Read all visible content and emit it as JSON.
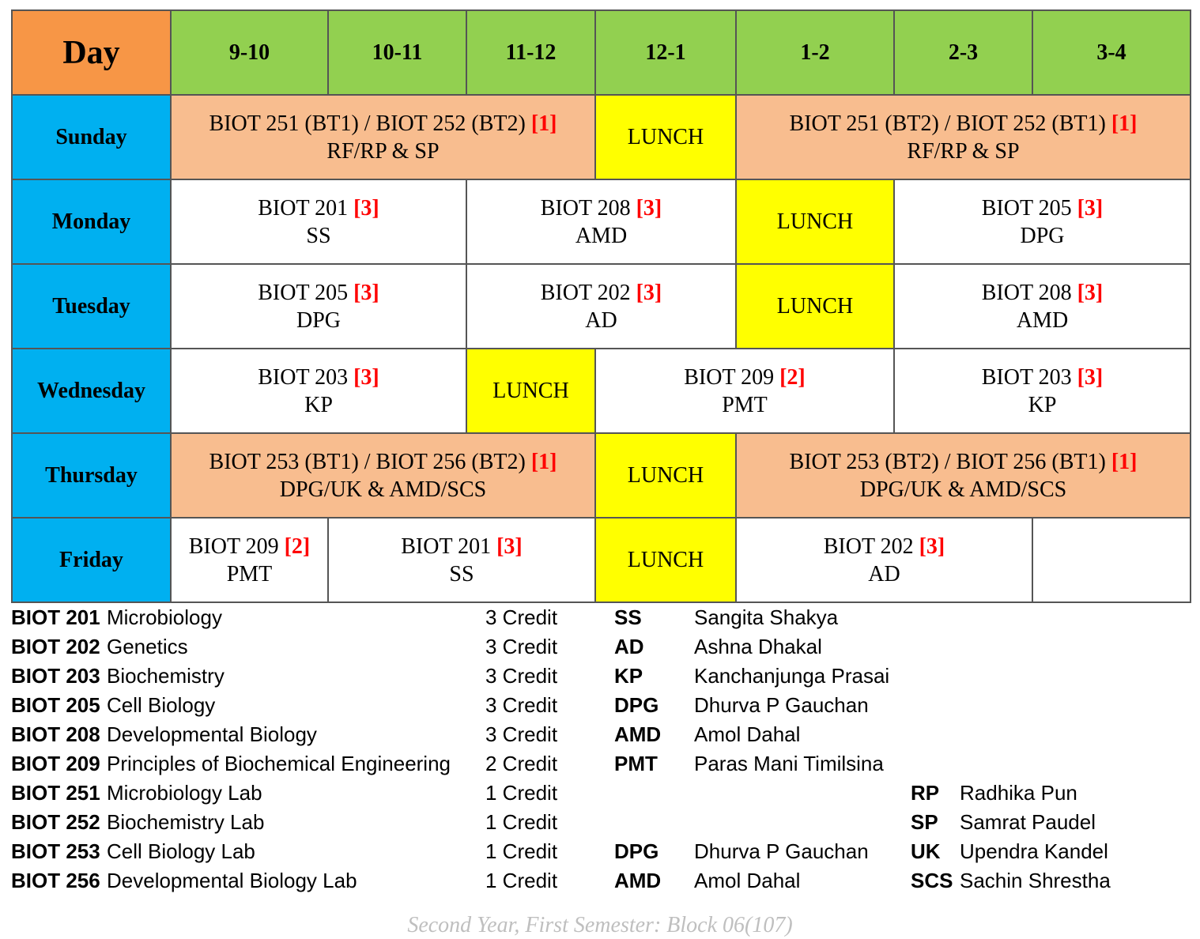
{
  "header": {
    "day_label": "Day",
    "slots": [
      "9-10",
      "10-11",
      "11-12",
      "12-1",
      "1-2",
      "2-3",
      "3-4"
    ]
  },
  "days": {
    "sunday": {
      "name": "Sunday",
      "c1": {
        "course": "BIOT 251 (BT1) / BIOT 252 (BT2)",
        "credit": "[1]",
        "teacher": "RF/RP & SP"
      },
      "lunch": "LUNCH",
      "c2": {
        "course": "BIOT 251 (BT2) / BIOT 252 (BT1)",
        "credit": "[1]",
        "teacher": "RF/RP & SP"
      }
    },
    "monday": {
      "name": "Monday",
      "c1": {
        "course": "BIOT 201",
        "credit": "[3]",
        "teacher": "SS"
      },
      "c2": {
        "course": "BIOT 208",
        "credit": "[3]",
        "teacher": "AMD"
      },
      "lunch": "LUNCH",
      "c3": {
        "course": "BIOT 205",
        "credit": "[3]",
        "teacher": "DPG"
      }
    },
    "tuesday": {
      "name": "Tuesday",
      "c1": {
        "course": "BIOT 205",
        "credit": "[3]",
        "teacher": "DPG"
      },
      "c2": {
        "course": "BIOT 202",
        "credit": "[3]",
        "teacher": "AD"
      },
      "lunch": "LUNCH",
      "c3": {
        "course": "BIOT 208",
        "credit": "[3]",
        "teacher": "AMD"
      }
    },
    "wednesday": {
      "name": "Wednesday",
      "c1": {
        "course": "BIOT 203",
        "credit": "[3]",
        "teacher": "KP"
      },
      "lunch": "LUNCH",
      "c2": {
        "course": "BIOT 209",
        "credit": "[2]",
        "teacher": "PMT"
      },
      "c3": {
        "course": "BIOT 203",
        "credit": "[3]",
        "teacher": "KP"
      }
    },
    "thursday": {
      "name": "Thursday",
      "c1": {
        "course": "BIOT 253 (BT1) / BIOT 256 (BT2)",
        "credit": "[1]",
        "teacher": "DPG/UK & AMD/SCS"
      },
      "lunch": "LUNCH",
      "c2": {
        "course": "BIOT 253 (BT2) / BIOT 256 (BT1)",
        "credit": "[1]",
        "teacher": "DPG/UK & AMD/SCS"
      }
    },
    "friday": {
      "name": "Friday",
      "c1": {
        "course": "BIOT 209",
        "credit": "[2]",
        "teacher": "PMT"
      },
      "c2": {
        "course": "BIOT 201",
        "credit": "[3]",
        "teacher": "SS"
      },
      "lunch": "LUNCH",
      "c3": {
        "course": "BIOT 202",
        "credit": "[3]",
        "teacher": "AD"
      }
    }
  },
  "legend": [
    {
      "code": "BIOT 201",
      "name": "Microbiology",
      "credit": "3 Credit",
      "abbr1": "SS",
      "full1": "Sangita Shakya",
      "abbr2": "",
      "full2": ""
    },
    {
      "code": "BIOT 202",
      "name": "Genetics",
      "credit": "3 Credit",
      "abbr1": "AD",
      "full1": "Ashna Dhakal",
      "abbr2": "",
      "full2": ""
    },
    {
      "code": "BIOT 203",
      "name": "Biochemistry",
      "credit": "3 Credit",
      "abbr1": "KP",
      "full1": "Kanchanjunga Prasai",
      "abbr2": "",
      "full2": ""
    },
    {
      "code": "BIOT 205",
      "name": "Cell Biology",
      "credit": "3 Credit",
      "abbr1": "DPG",
      "full1": "Dhurva P Gauchan",
      "abbr2": "",
      "full2": ""
    },
    {
      "code": "BIOT 208",
      "name": "Developmental Biology",
      "credit": "3 Credit",
      "abbr1": "AMD",
      "full1": "Amol Dahal",
      "abbr2": "",
      "full2": ""
    },
    {
      "code": "BIOT 209",
      "name": "Principles of Biochemical Engineering",
      "credit": "2 Credit",
      "abbr1": "PMT",
      "full1": "Paras Mani Timilsina",
      "abbr2": "",
      "full2": ""
    },
    {
      "code": "BIOT 251",
      "name": "Microbiology Lab",
      "credit": "1 Credit",
      "abbr1": "",
      "full1": "",
      "abbr2": "RP",
      "full2": "Radhika Pun"
    },
    {
      "code": "BIOT 252",
      "name": "Biochemistry Lab",
      "credit": "1 Credit",
      "abbr1": "",
      "full1": "",
      "abbr2": "SP",
      "full2": "Samrat Paudel"
    },
    {
      "code": "BIOT 253",
      "name": "Cell Biology Lab",
      "credit": "1 Credit",
      "abbr1": "DPG",
      "full1": "Dhurva P Gauchan",
      "abbr2": "UK",
      "full2": "Upendra Kandel"
    },
    {
      "code": "BIOT 256",
      "name": "Developmental Biology Lab",
      "credit": "1 Credit",
      "abbr1": "AMD",
      "full1": "Amol Dahal",
      "abbr2": "SCS",
      "full2": "Sachin Shrestha"
    }
  ],
  "footer": "Second Year, First Semester: Block 06(107)"
}
